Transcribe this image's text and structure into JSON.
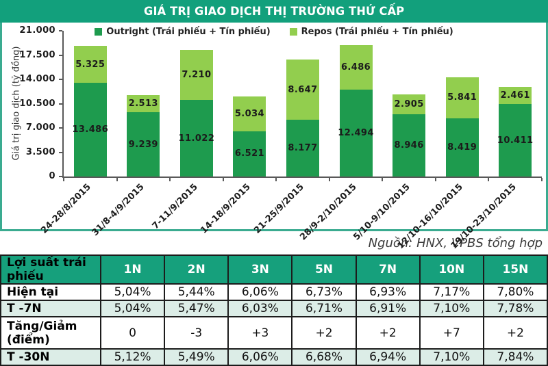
{
  "banner": {
    "title": "GIÁ TRỊ GIAO DỊCH THỊ TRƯỜNG THỨ CẤP"
  },
  "chart_data": {
    "type": "bar",
    "stacked": true,
    "title": "GIÁ TRỊ GIAO DỊCH THỊ TRƯỜNG THỨ CẤP",
    "ylabel": "Giá trị giao dịch (tỷ đồng)",
    "ylim": [
      0,
      21000
    ],
    "yticks": [
      0,
      3500,
      7000,
      10500,
      14000,
      17500,
      21000
    ],
    "ytick_labels": [
      "0",
      "3.500",
      "7.000",
      "10.500",
      "14.000",
      "17.500",
      "21.000"
    ],
    "grid": false,
    "legend_position": "top",
    "categories": [
      "24-28/8/2015",
      "31/8-4/9/2015",
      "7-11/9/2015",
      "14-18/9/2015",
      "21-25/9/2015",
      "28/9-2/10/2015",
      "5/10-9/10/2015",
      "12/10-16/10/2015",
      "19/10-23/10/2015"
    ],
    "series": [
      {
        "name": "Outright (Trái phiếu + Tín phiếu)",
        "color": "#1e9b4e",
        "values": [
          13486,
          9239,
          11022,
          6521,
          8177,
          12494,
          8946,
          8419,
          10411
        ]
      },
      {
        "name": "Repos (Trái phiếu + Tín phiếu)",
        "color": "#92ce4e",
        "values": [
          5325,
          2513,
          7210,
          5034,
          8647,
          6486,
          2905,
          5841,
          2461
        ]
      }
    ]
  },
  "source": "Nguồn: HNX, VPBS tổng hợp",
  "bond_table": {
    "header": [
      "Lợi suất trái phiếu",
      "1N",
      "2N",
      "3N",
      "5N",
      "7N",
      "10N",
      "15N"
    ],
    "rows": [
      {
        "label": "Hiện tại",
        "values": [
          "5,04%",
          "5,44%",
          "6,06%",
          "6,73%",
          "6,93%",
          "7,17%",
          "7,80%"
        ]
      },
      {
        "label": "T -7N",
        "values": [
          "5,04%",
          "5,47%",
          "6,03%",
          "6,71%",
          "6,91%",
          "7,10%",
          "7,78%"
        ]
      },
      {
        "label": "Tăng/Giảm (điểm)",
        "values": [
          "0",
          "-3",
          "+3",
          "+2",
          "+2",
          "+7",
          "+2"
        ]
      },
      {
        "label": "T -30N",
        "values": [
          "5,12%",
          "5,49%",
          "6,06%",
          "6,68%",
          "6,94%",
          "7,10%",
          "7,84%"
        ]
      }
    ]
  },
  "colors": {
    "banner_bg": "#12a07c",
    "chart_border": "#3aab90",
    "outright": "#1e9b4e",
    "repos": "#92ce4e",
    "axis": "#595959",
    "table_header_bg": "#16a07c",
    "table_alt_row": "#dcede7"
  }
}
